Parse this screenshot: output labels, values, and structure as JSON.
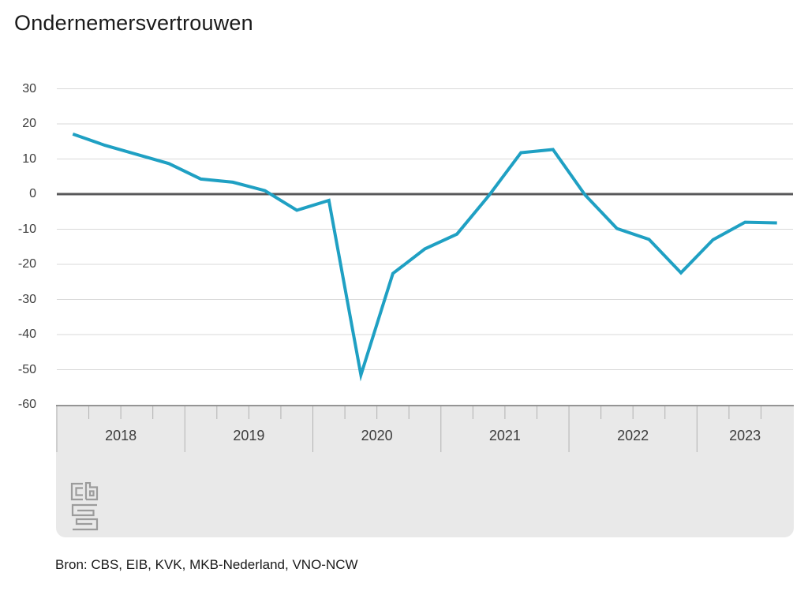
{
  "page": {
    "title": "Ondernemersvertrouwen",
    "source_note": "Bron: CBS, EIB, KVK, MKB-Nederland, VNO-NCW",
    "logo_name": "cbs-logo"
  },
  "chart_data": {
    "type": "line",
    "title": "Ondernemersvertrouwen",
    "categories": [
      "2018 Q1",
      "2018 Q2",
      "2018 Q3",
      "2018 Q4",
      "2019 Q1",
      "2019 Q2",
      "2019 Q3",
      "2019 Q4",
      "2020 Q1",
      "2020 Q2",
      "2020 Q3",
      "2020 Q4",
      "2021 Q1",
      "2021 Q2",
      "2021 Q3",
      "2021 Q4",
      "2022 Q1",
      "2022 Q2",
      "2022 Q3",
      "2022 Q4",
      "2023 Q1",
      "2023 Q2",
      "2023 Q3"
    ],
    "series": [
      {
        "name": "Ondernemersvertrouwen",
        "values": [
          17.1,
          13.9,
          11.3,
          8.7,
          4.3,
          3.4,
          1.0,
          -4.6,
          -1.8,
          -51.5,
          -22.6,
          -15.6,
          -11.4,
          -0.4,
          11.8,
          12.7,
          -0.2,
          -9.8,
          -12.9,
          -22.4,
          -13.0,
          -8.0,
          -8.2
        ]
      }
    ],
    "x_year_labels": [
      "2018",
      "2019",
      "2020",
      "2021",
      "2022",
      "2023"
    ],
    "y_ticks": [
      30,
      20,
      10,
      0,
      -10,
      -20,
      -30,
      -40,
      -50,
      -60
    ],
    "ylim": [
      -60,
      30
    ],
    "grid": "horizontal",
    "legend": "none",
    "line_color": "#1fa0c3",
    "zero_line_color": "#58585a",
    "grid_color": "#d9d9d9",
    "tick_color": "#b2b2b2",
    "axis_band_color": "#e9e9e9",
    "source": "Bron: CBS, EIB, KVK, MKB-Nederland, VNO-NCW"
  }
}
